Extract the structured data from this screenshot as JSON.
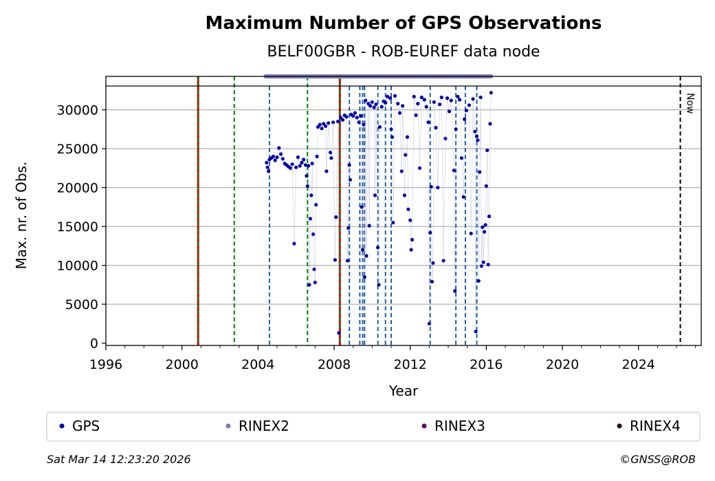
{
  "chart_data": {
    "type": "scatter",
    "title": "Maximum Number of GPS Observations",
    "subtitle": "BELF00GBR - ROB-EUREF data node",
    "xlabel": "Year",
    "ylabel": "Max. nr. of Obs.",
    "xlim": [
      1996,
      2027.3
    ],
    "ylim": [
      -300,
      34300
    ],
    "x_ticks": [
      1996,
      2000,
      2004,
      2008,
      2012,
      2016,
      2020,
      2024
    ],
    "y_ticks": [
      0,
      5000,
      10000,
      15000,
      20000,
      25000,
      30000
    ],
    "grid": "horizontal",
    "now_label": "Now",
    "now_year": 2026.2,
    "rinex2_span": [
      2004.4,
      2016.25
    ],
    "rinex2_level": 34300,
    "events": [
      {
        "year": 2000.85,
        "kind": "red"
      },
      {
        "year": 2008.3,
        "kind": "red"
      },
      {
        "year": 2002.75,
        "kind": "green"
      },
      {
        "year": 2006.6,
        "kind": "green"
      },
      {
        "year": 2000.85,
        "kind": "green"
      },
      {
        "year": 2008.3,
        "kind": "green"
      },
      {
        "year": 2004.6,
        "kind": "blue"
      },
      {
        "year": 2008.8,
        "kind": "blue"
      },
      {
        "year": 2009.35,
        "kind": "blue"
      },
      {
        "year": 2009.5,
        "kind": "blue"
      },
      {
        "year": 2009.6,
        "kind": "blue"
      },
      {
        "year": 2010.3,
        "kind": "blue"
      },
      {
        "year": 2010.7,
        "kind": "blue"
      },
      {
        "year": 2011.0,
        "kind": "blue"
      },
      {
        "year": 2013.05,
        "kind": "blue"
      },
      {
        "year": 2014.4,
        "kind": "blue"
      },
      {
        "year": 2014.9,
        "kind": "blue"
      },
      {
        "year": 2015.5,
        "kind": "blue"
      }
    ],
    "series": [
      {
        "name": "GPS",
        "points": [
          [
            2004.45,
            23200
          ],
          [
            2004.5,
            22600
          ],
          [
            2004.55,
            22100
          ],
          [
            2004.6,
            23600
          ],
          [
            2004.7,
            23800
          ],
          [
            2004.8,
            24000
          ],
          [
            2004.9,
            23500
          ],
          [
            2005.0,
            23900
          ],
          [
            2005.1,
            25100
          ],
          [
            2005.2,
            24300
          ],
          [
            2005.3,
            23700
          ],
          [
            2005.4,
            23100
          ],
          [
            2005.5,
            22900
          ],
          [
            2005.6,
            22700
          ],
          [
            2005.7,
            22500
          ],
          [
            2005.8,
            23000
          ],
          [
            2005.9,
            12800
          ],
          [
            2006.0,
            22600
          ],
          [
            2006.1,
            23900
          ],
          [
            2006.2,
            22800
          ],
          [
            2006.3,
            23200
          ],
          [
            2006.4,
            23600
          ],
          [
            2006.5,
            22900
          ],
          [
            2006.55,
            21500
          ],
          [
            2006.6,
            20200
          ],
          [
            2006.65,
            22800
          ],
          [
            2006.7,
            7500
          ],
          [
            2006.75,
            16000
          ],
          [
            2006.8,
            19000
          ],
          [
            2006.85,
            23100
          ],
          [
            2006.9,
            14000
          ],
          [
            2006.95,
            9500
          ],
          [
            2007.0,
            7800
          ],
          [
            2007.05,
            17800
          ],
          [
            2007.1,
            24000
          ],
          [
            2007.15,
            27800
          ],
          [
            2007.25,
            28100
          ],
          [
            2007.35,
            27600
          ],
          [
            2007.45,
            28200
          ],
          [
            2007.55,
            27900
          ],
          [
            2007.6,
            22100
          ],
          [
            2007.7,
            28300
          ],
          [
            2007.8,
            24500
          ],
          [
            2007.85,
            23800
          ],
          [
            2007.95,
            28400
          ],
          [
            2008.05,
            10700
          ],
          [
            2008.1,
            16200
          ],
          [
            2008.2,
            28500
          ],
          [
            2008.25,
            1300
          ],
          [
            2008.35,
            29000
          ],
          [
            2008.45,
            28700
          ],
          [
            2008.55,
            29300
          ],
          [
            2008.65,
            29100
          ],
          [
            2008.7,
            10600
          ],
          [
            2008.75,
            14800
          ],
          [
            2008.8,
            22900
          ],
          [
            2008.85,
            21000
          ],
          [
            2008.9,
            29400
          ],
          [
            2009.0,
            29200
          ],
          [
            2009.1,
            29600
          ],
          [
            2009.2,
            29000
          ],
          [
            2009.3,
            28400
          ],
          [
            2009.4,
            29200
          ],
          [
            2009.45,
            17500
          ],
          [
            2009.5,
            12000
          ],
          [
            2009.55,
            28100
          ],
          [
            2009.6,
            8500
          ],
          [
            2009.65,
            31200
          ],
          [
            2009.7,
            11200
          ],
          [
            2009.8,
            30800
          ],
          [
            2009.85,
            15100
          ],
          [
            2009.9,
            30500
          ],
          [
            2010.0,
            31000
          ],
          [
            2010.1,
            30300
          ],
          [
            2010.15,
            19000
          ],
          [
            2010.2,
            30700
          ],
          [
            2010.3,
            12300
          ],
          [
            2010.35,
            7500
          ],
          [
            2010.4,
            27800
          ],
          [
            2010.5,
            30400
          ],
          [
            2010.6,
            31100
          ],
          [
            2010.7,
            30900
          ],
          [
            2010.8,
            31700
          ],
          [
            2010.95,
            31500
          ],
          [
            2011.0,
            27500
          ],
          [
            2011.05,
            26500
          ],
          [
            2011.1,
            15500
          ],
          [
            2011.2,
            31800
          ],
          [
            2011.35,
            30800
          ],
          [
            2011.45,
            29600
          ],
          [
            2011.55,
            22100
          ],
          [
            2011.6,
            30500
          ],
          [
            2011.7,
            19000
          ],
          [
            2011.75,
            24200
          ],
          [
            2011.85,
            26500
          ],
          [
            2011.9,
            17200
          ],
          [
            2012.0,
            15800
          ],
          [
            2012.05,
            12000
          ],
          [
            2012.1,
            13300
          ],
          [
            2012.2,
            31700
          ],
          [
            2012.3,
            29300
          ],
          [
            2012.4,
            30800
          ],
          [
            2012.5,
            22500
          ],
          [
            2012.6,
            31600
          ],
          [
            2012.75,
            31300
          ],
          [
            2012.85,
            30400
          ],
          [
            2012.95,
            28400
          ],
          [
            2013.0,
            2500
          ],
          [
            2013.05,
            14200
          ],
          [
            2013.1,
            20100
          ],
          [
            2013.15,
            7900
          ],
          [
            2013.2,
            10300
          ],
          [
            2013.25,
            31000
          ],
          [
            2013.35,
            27700
          ],
          [
            2013.45,
            20000
          ],
          [
            2013.55,
            30700
          ],
          [
            2013.65,
            31600
          ],
          [
            2013.75,
            10600
          ],
          [
            2013.85,
            26300
          ],
          [
            2013.95,
            31500
          ],
          [
            2014.05,
            29800
          ],
          [
            2014.15,
            31200
          ],
          [
            2014.3,
            22200
          ],
          [
            2014.35,
            6700
          ],
          [
            2014.4,
            27500
          ],
          [
            2014.5,
            31700
          ],
          [
            2014.6,
            31300
          ],
          [
            2014.7,
            23800
          ],
          [
            2014.8,
            18800
          ],
          [
            2014.85,
            28800
          ],
          [
            2014.95,
            29900
          ],
          [
            2015.1,
            30600
          ],
          [
            2015.2,
            14100
          ],
          [
            2015.3,
            31400
          ],
          [
            2015.4,
            27200
          ],
          [
            2015.45,
            1500
          ],
          [
            2015.5,
            26600
          ],
          [
            2015.55,
            26100
          ],
          [
            2015.6,
            8000
          ],
          [
            2015.65,
            22000
          ],
          [
            2015.7,
            31600
          ],
          [
            2015.75,
            9900
          ],
          [
            2015.8,
            14900
          ],
          [
            2015.85,
            10400
          ],
          [
            2015.9,
            14300
          ],
          [
            2015.95,
            15200
          ],
          [
            2016.0,
            20200
          ],
          [
            2016.05,
            24800
          ],
          [
            2016.1,
            10100
          ],
          [
            2016.15,
            16300
          ],
          [
            2016.2,
            28200
          ],
          [
            2016.25,
            32200
          ]
        ]
      },
      {
        "name": "RINEX2"
      },
      {
        "name": "RINEX3"
      },
      {
        "name": "RINEX4"
      }
    ]
  },
  "legend": {
    "items": [
      {
        "label": "GPS",
        "color": "#0000a0"
      },
      {
        "label": "RINEX2",
        "color": "#7b7bb5"
      },
      {
        "label": "RINEX3",
        "color": "#6b006b"
      },
      {
        "label": "RINEX4",
        "color": "#2a001e"
      }
    ]
  },
  "footer": {
    "timestamp": "Sat Mar 14 12:23:20 2026",
    "credit": "©GNSS@ROB"
  },
  "colors": {
    "gps": "#0000a0",
    "rinex2": "#7b7bb5",
    "grid": "#b0b0b0",
    "red_event": "#cc0000",
    "green_event": "#008000",
    "blue_event": "#1f5fa8",
    "now": "#000000"
  }
}
